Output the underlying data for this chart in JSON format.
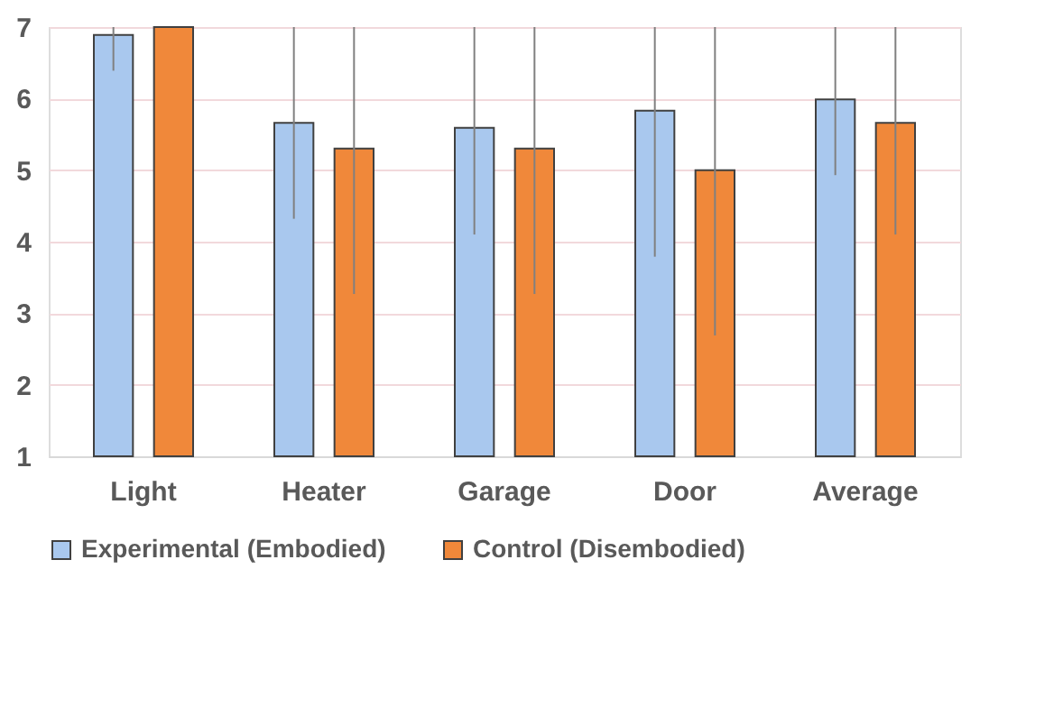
{
  "chart_data": {
    "type": "bar",
    "categories": [
      "Light",
      "Heater",
      "Garage",
      "Door",
      "Average"
    ],
    "series": [
      {
        "name": "Experimental (Embodied)",
        "color": "#a9c8ee",
        "values": [
          6.89,
          5.66,
          5.59,
          5.83,
          5.99
        ],
        "errors": [
          [
            6.39,
            7
          ],
          [
            4.32,
            7
          ],
          [
            4.1,
            7
          ],
          [
            3.79,
            7
          ],
          [
            4.93,
            7
          ]
        ]
      },
      {
        "name": "Control (Disembodied)",
        "color": "#f0883a",
        "values": [
          7.0,
          5.3,
          5.3,
          5.0,
          5.66
        ],
        "errors": [
          null,
          [
            3.27,
            7
          ],
          [
            3.27,
            7
          ],
          [
            2.69,
            7
          ],
          [
            4.1,
            7
          ]
        ]
      }
    ],
    "ylim": [
      1,
      7
    ],
    "yticks": [
      1,
      2,
      3,
      4,
      5,
      6,
      7
    ],
    "grid": "y",
    "legend": "bottom"
  }
}
